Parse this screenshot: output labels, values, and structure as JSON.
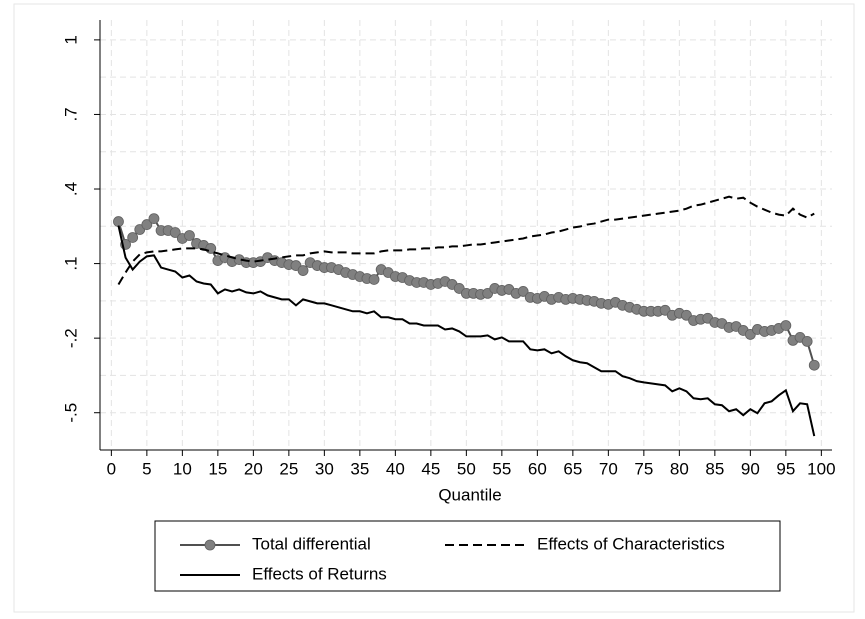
{
  "chart_data": {
    "type": "line",
    "x_label": "Quantile",
    "x": [
      1,
      2,
      3,
      4,
      5,
      6,
      7,
      8,
      9,
      10,
      11,
      12,
      13,
      14,
      15,
      16,
      17,
      18,
      19,
      20,
      21,
      22,
      23,
      24,
      25,
      26,
      27,
      28,
      29,
      30,
      31,
      32,
      33,
      34,
      35,
      36,
      37,
      38,
      39,
      40,
      41,
      42,
      43,
      44,
      45,
      46,
      47,
      48,
      49,
      50,
      51,
      52,
      53,
      54,
      55,
      56,
      57,
      58,
      59,
      60,
      61,
      62,
      63,
      64,
      65,
      66,
      67,
      68,
      69,
      70,
      71,
      72,
      73,
      74,
      75,
      76,
      77,
      78,
      79,
      80,
      81,
      82,
      83,
      84,
      85,
      86,
      87,
      88,
      89,
      90,
      91,
      92,
      93,
      94,
      95,
      96,
      97,
      98,
      99
    ],
    "series": [
      {
        "name": "Total differential",
        "color": "#808080",
        "line_color": "#505050",
        "markers": true,
        "dash": "solid",
        "values": [
          0.269,
          0.177,
          0.205,
          0.237,
          0.257,
          0.281,
          0.233,
          0.233,
          0.225,
          0.201,
          0.213,
          0.181,
          0.173,
          0.161,
          0.112,
          0.124,
          0.108,
          0.116,
          0.104,
          0.104,
          0.108,
          0.124,
          0.112,
          0.104,
          0.096,
          0.092,
          0.072,
          0.104,
          0.092,
          0.084,
          0.084,
          0.076,
          0.064,
          0.056,
          0.048,
          0.04,
          0.036,
          0.076,
          0.064,
          0.048,
          0.044,
          0.032,
          0.024,
          0.024,
          0.016,
          0.02,
          0.028,
          0.016,
          0,
          -0.02,
          -0.02,
          -0.024,
          -0.02,
          0,
          -0.008,
          -0.004,
          -0.02,
          -0.012,
          -0.036,
          -0.04,
          -0.032,
          -0.044,
          -0.036,
          -0.044,
          -0.04,
          -0.044,
          -0.048,
          -0.052,
          -0.06,
          -0.064,
          -0.056,
          -0.068,
          -0.076,
          -0.084,
          -0.092,
          -0.092,
          -0.092,
          -0.088,
          -0.108,
          -0.1,
          -0.108,
          -0.129,
          -0.124,
          -0.12,
          -0.137,
          -0.141,
          -0.157,
          -0.153,
          -0.169,
          -0.185,
          -0.165,
          -0.173,
          -0.169,
          -0.161,
          -0.149,
          -0.209,
          -0.197,
          -0.213,
          -0.309
        ]
      },
      {
        "name": "Effects of Characteristics",
        "color": "#000000",
        "markers": false,
        "dash": "dashed",
        "values": [
          0.016,
          0.064,
          0.108,
          0.137,
          0.145,
          0.149,
          0.149,
          0.153,
          0.157,
          0.161,
          0.161,
          0.161,
          0.157,
          0.149,
          0.141,
          0.133,
          0.125,
          0.117,
          0.112,
          0.108,
          0.112,
          0.116,
          0.12,
          0.125,
          0.129,
          0.133,
          0.133,
          0.141,
          0.145,
          0.149,
          0.145,
          0.145,
          0.145,
          0.141,
          0.141,
          0.141,
          0.141,
          0.149,
          0.153,
          0.153,
          0.153,
          0.157,
          0.157,
          0.161,
          0.161,
          0.165,
          0.165,
          0.169,
          0.169,
          0.173,
          0.177,
          0.177,
          0.181,
          0.185,
          0.189,
          0.193,
          0.197,
          0.201,
          0.209,
          0.213,
          0.217,
          0.225,
          0.229,
          0.237,
          0.245,
          0.249,
          0.257,
          0.261,
          0.269,
          0.277,
          0.277,
          0.281,
          0.285,
          0.289,
          0.293,
          0.297,
          0.301,
          0.305,
          0.309,
          0.313,
          0.321,
          0.333,
          0.337,
          0.345,
          0.353,
          0.361,
          0.369,
          0.361,
          0.365,
          0.345,
          0.329,
          0.317,
          0.305,
          0.297,
          0.293,
          0.321,
          0.297,
          0.285,
          0.301
        ]
      },
      {
        "name": "Effects of Returns",
        "color": "#000000",
        "markers": false,
        "dash": "solid",
        "values": [
          0.253,
          0.124,
          0.076,
          0.108,
          0.129,
          0.133,
          0.084,
          0.076,
          0.068,
          0.044,
          0.052,
          0.028,
          0.02,
          0.016,
          -0.02,
          -0.004,
          -0.012,
          -0.004,
          -0.016,
          -0.02,
          -0.012,
          -0.028,
          -0.036,
          -0.044,
          -0.044,
          -0.068,
          -0.044,
          -0.052,
          -0.06,
          -0.06,
          -0.068,
          -0.076,
          -0.084,
          -0.092,
          -0.092,
          -0.1,
          -0.092,
          -0.116,
          -0.116,
          -0.124,
          -0.124,
          -0.141,
          -0.141,
          -0.149,
          -0.149,
          -0.149,
          -0.165,
          -0.161,
          -0.173,
          -0.193,
          -0.193,
          -0.193,
          -0.189,
          -0.205,
          -0.197,
          -0.213,
          -0.213,
          -0.213,
          -0.245,
          -0.249,
          -0.245,
          -0.261,
          -0.253,
          -0.273,
          -0.289,
          -0.297,
          -0.301,
          -0.317,
          -0.333,
          -0.333,
          -0.333,
          -0.353,
          -0.361,
          -0.373,
          -0.378,
          -0.382,
          -0.386,
          -0.39,
          -0.414,
          -0.402,
          -0.414,
          -0.442,
          -0.446,
          -0.442,
          -0.466,
          -0.47,
          -0.494,
          -0.486,
          -0.51,
          -0.486,
          -0.502,
          -0.462,
          -0.454,
          -0.43,
          -0.41,
          -0.494,
          -0.462,
          -0.466,
          -0.594
        ]
      }
    ],
    "xlim": [
      -1.6,
      101.5
    ],
    "xticks": [
      0,
      5,
      10,
      15,
      20,
      25,
      30,
      35,
      40,
      45,
      50,
      55,
      60,
      65,
      70,
      75,
      80,
      85,
      90,
      95,
      100
    ],
    "ylim": [
      -0.65,
      1.08
    ],
    "yticks": [
      {
        "value": -0.5,
        "label": "-.5"
      },
      {
        "value": -0.2,
        "label": "-.2"
      },
      {
        "value": 0.1,
        "label": ".1"
      },
      {
        "value": 0.4,
        "label": ".4"
      },
      {
        "value": 0.7,
        "label": ".7"
      },
      1
    ],
    "grid": true,
    "legend": "bottom"
  }
}
